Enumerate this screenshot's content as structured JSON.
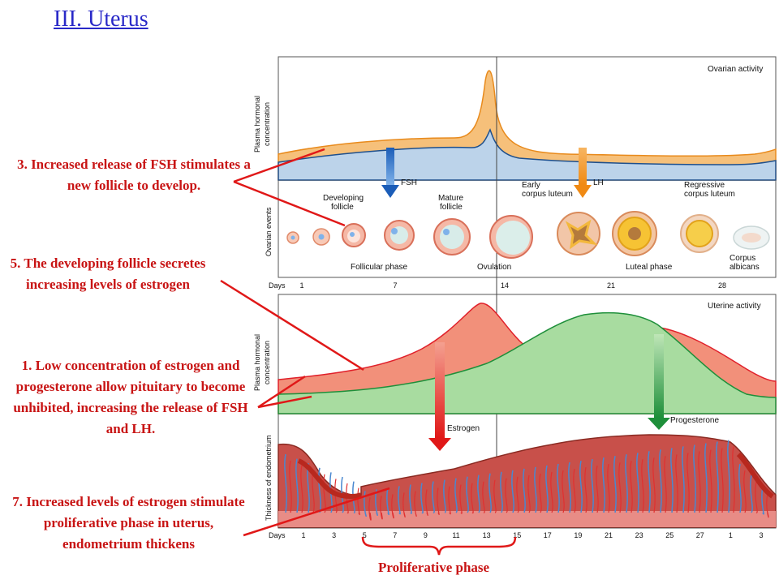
{
  "title": "III.  Uterus",
  "notes": {
    "n3": "3.  Increased release of FSH stimulates a new follicle to develop.",
    "n5": "5.    The developing follicle secretes increasing levels of estrogen",
    "n1": "1.  Low concentration of estrogen and progesterone allow pituitary to become unhibited, increasing the release of FSH and LH.",
    "n7": "7.  Increased levels of estrogen stimulate proliferative phase in uterus, endometrium thickens"
  },
  "proliferative_label": "Proliferative phase",
  "figure": {
    "ovarian_activity": "Ovarian activity",
    "uterine_activity": "Uterine activity",
    "y_label_top_1": "Plasma hormonal",
    "y_label_top_2": "concentration",
    "y_label_events": "Ovarian events",
    "y_label_mid_1": "Plasma hormonal",
    "y_label_mid_2": "concentration",
    "y_label_endo": "Thickness of endometrium",
    "fsh": "FSH",
    "lh": "LH",
    "estrogen": "Estrogen",
    "progesterone": "Progesterone",
    "developing_follicle_1": "Developing",
    "developing_follicle_2": "follicle",
    "mature_follicle_1": "Mature",
    "mature_follicle_2": "follicle",
    "early_cl_1": "Early",
    "early_cl_2": "corpus luteum",
    "regressive_cl_1": "Regressive",
    "regressive_cl_2": "corpus luteum",
    "corpus_albicans_1": "Corpus",
    "corpus_albicans_2": "albicans",
    "follicular_phase": "Follicular phase",
    "ovulation": "Ovulation",
    "luteal_phase": "Luteal phase",
    "days_label": "Days",
    "top_days": [
      "1",
      "7",
      "14",
      "21",
      "28"
    ],
    "bottom_days": [
      "1",
      "3",
      "5",
      "7",
      "9",
      "11",
      "13",
      "15",
      "17",
      "19",
      "21",
      "23",
      "25",
      "27",
      "1",
      "3"
    ]
  },
  "colors": {
    "fsh_fill": "#f6c07a",
    "blue_fill": "#bcd3ea",
    "estrogen_fill": "#f2907a",
    "progesterone_fill": "#a8dca0",
    "note_red": "#c81414",
    "title_blue": "#2929c8"
  }
}
